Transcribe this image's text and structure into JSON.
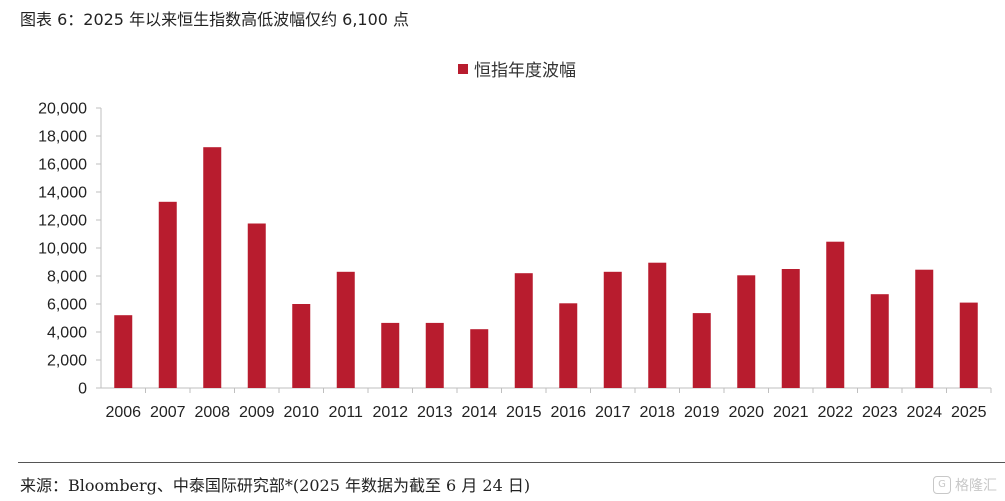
{
  "figure": {
    "title": "图表 6：2025 年以来恒生指数高低波幅仅约 6,100 点",
    "source": "来源：Bloomberg、中泰国际研究部*(2025 年数据为截至 6 月 24 日)",
    "watermark_text": "格隆汇",
    "watermark_icon_char": "G"
  },
  "chart_data": {
    "type": "bar",
    "title": "",
    "xlabel": "",
    "ylabel": "",
    "legend_position": "top-center",
    "grid": false,
    "ylim": [
      0,
      20000
    ],
    "yticks": [
      0,
      2000,
      4000,
      6000,
      8000,
      10000,
      12000,
      14000,
      16000,
      18000,
      20000
    ],
    "ytick_labels": [
      "0",
      "2,000",
      "4,000",
      "6,000",
      "8,000",
      "10,000",
      "12,000",
      "14,000",
      "16,000",
      "18,000",
      "20,000"
    ],
    "categories": [
      "2006",
      "2007",
      "2008",
      "2009",
      "2010",
      "2011",
      "2012",
      "2013",
      "2014",
      "2015",
      "2016",
      "2017",
      "2018",
      "2019",
      "2020",
      "2021",
      "2022",
      "2023",
      "2024",
      "2025"
    ],
    "series": [
      {
        "name": "恒指年度波幅",
        "color": "#b81c2e",
        "values": [
          5200,
          13300,
          17200,
          11750,
          6000,
          8300,
          4650,
          4650,
          4200,
          8200,
          6050,
          8300,
          8950,
          5350,
          8050,
          8500,
          10450,
          6700,
          8450,
          6100
        ]
      }
    ]
  }
}
